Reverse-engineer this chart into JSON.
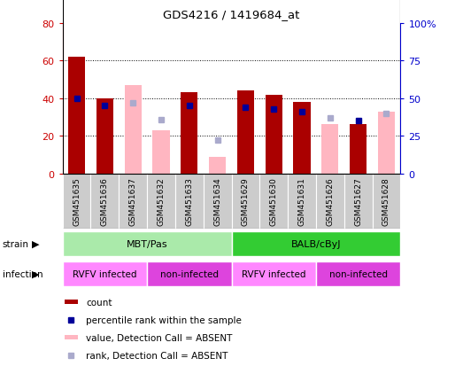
{
  "title": "GDS4216 / 1419684_at",
  "samples": [
    "GSM451635",
    "GSM451636",
    "GSM451637",
    "GSM451632",
    "GSM451633",
    "GSM451634",
    "GSM451629",
    "GSM451630",
    "GSM451631",
    "GSM451626",
    "GSM451627",
    "GSM451628"
  ],
  "count_values": [
    62,
    40,
    null,
    null,
    43,
    null,
    44,
    42,
    38,
    null,
    26,
    null
  ],
  "percentile_values": [
    50,
    45,
    null,
    null,
    45,
    null,
    44,
    43,
    41,
    null,
    35,
    null
  ],
  "absent_value_values": [
    null,
    null,
    47,
    23,
    null,
    9,
    null,
    null,
    null,
    26,
    null,
    33
  ],
  "absent_rank_values": [
    null,
    null,
    47,
    36,
    null,
    22,
    null,
    null,
    null,
    37,
    null,
    40
  ],
  "strain_groups": [
    {
      "label": "MBT/Pas",
      "start": 0,
      "end": 6,
      "color": "#AAEAAA"
    },
    {
      "label": "BALB/cByJ",
      "start": 6,
      "end": 12,
      "color": "#33CC33"
    }
  ],
  "infection_groups": [
    {
      "label": "RVFV infected",
      "start": 0,
      "end": 3,
      "color": "#FF88FF"
    },
    {
      "label": "non-infected",
      "start": 3,
      "end": 6,
      "color": "#DD44DD"
    },
    {
      "label": "RVFV infected",
      "start": 6,
      "end": 9,
      "color": "#FF88FF"
    },
    {
      "label": "non-infected",
      "start": 9,
      "end": 12,
      "color": "#DD44DD"
    }
  ],
  "ylim_left": [
    0,
    80
  ],
  "ylim_right": [
    0,
    100
  ],
  "yticks_left": [
    0,
    20,
    40,
    60,
    80
  ],
  "yticks_right": [
    0,
    25,
    50,
    75,
    100
  ],
  "count_color": "#AA0000",
  "percentile_color": "#000099",
  "absent_value_color": "#FFB6C1",
  "absent_rank_color": "#AAAACC",
  "grid_color": "black",
  "left_axis_color": "#CC0000",
  "right_axis_color": "#0000CC",
  "sample_box_color": "#CCCCCC",
  "bar_width": 0.6
}
